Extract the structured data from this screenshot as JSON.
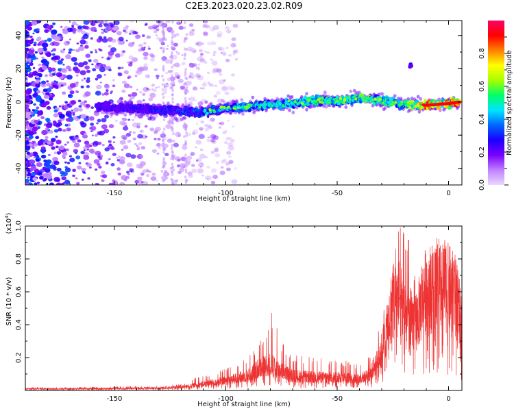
{
  "title": "C2E3.2023.020.23.02.R09",
  "colors": {
    "snr_line": "#ee3333",
    "background": "#ffffff",
    "colormap": [
      "#e8d8ff",
      "#c080ff",
      "#7a00ff",
      "#1a00ff",
      "#0066ff",
      "#00e5ff",
      "#00ff66",
      "#a8ff00",
      "#ffff00",
      "#ff8000",
      "#ff0000",
      "#ff0066"
    ]
  },
  "chart_data": [
    {
      "type": "heatmap",
      "title": "",
      "xlabel": "Height of straight line (km)",
      "ylabel": "Frequency (Hz)",
      "xlim": [
        -190,
        6
      ],
      "ylim": [
        -50,
        49
      ],
      "x_ticks": [
        -150,
        -100,
        -50,
        0
      ],
      "y_ticks": [
        -40,
        -20,
        0,
        20,
        40
      ],
      "colorbar": {
        "label": "Normalized spectral amplitude",
        "range": [
          0.0,
          1.0
        ],
        "ticks": [
          0.0,
          0.2,
          0.4,
          0.6,
          0.8
        ]
      },
      "ridge": [
        {
          "x": -180,
          "freq": 0.0,
          "amp": 0.4
        },
        {
          "x": -150,
          "freq": -3.5,
          "amp": 0.25
        },
        {
          "x": -130,
          "freq": -5.0,
          "amp": 0.3
        },
        {
          "x": -110,
          "freq": -6.0,
          "amp": 0.35
        },
        {
          "x": -100,
          "freq": -4.0,
          "amp": 0.4
        },
        {
          "x": -90,
          "freq": -2.5,
          "amp": 0.45
        },
        {
          "x": -80,
          "freq": -1.5,
          "amp": 0.5
        },
        {
          "x": -70,
          "freq": -1.0,
          "amp": 0.5
        },
        {
          "x": -60,
          "freq": 1.0,
          "amp": 0.55
        },
        {
          "x": -50,
          "freq": 0.5,
          "amp": 0.55
        },
        {
          "x": -40,
          "freq": 2.5,
          "amp": 0.6
        },
        {
          "x": -30,
          "freq": 1.0,
          "amp": 0.55
        },
        {
          "x": -20,
          "freq": -1.5,
          "amp": 0.55
        },
        {
          "x": -10,
          "freq": -2.0,
          "amp": 0.9
        },
        {
          "x": 0,
          "freq": -1.0,
          "amp": 0.8
        },
        {
          "x": 5,
          "freq": 0.0,
          "amp": 0.95
        }
      ],
      "secondary_feature": {
        "x": -17,
        "freq": 22,
        "amp": 0.2
      }
    },
    {
      "type": "line",
      "title": "",
      "xlabel": "Height of straight line (km)",
      "ylabel": "SNR (10 * v/v)",
      "y_scale_label": "(x10",
      "y_scale_exponent": "4",
      "y_scale_suffix": ")",
      "xlim": [
        -190,
        6
      ],
      "ylim": [
        0,
        1.0
      ],
      "x_ticks": [
        -150,
        -100,
        -50,
        0
      ],
      "y_ticks": [
        0.2,
        0.4,
        0.6,
        0.8,
        1.0
      ],
      "series": [
        {
          "envelope": [
            {
              "x": -190,
              "mean": 0.01,
              "peak": 0.02
            },
            {
              "x": -170,
              "mean": 0.01,
              "peak": 0.02
            },
            {
              "x": -150,
              "mean": 0.012,
              "peak": 0.025
            },
            {
              "x": -130,
              "mean": 0.015,
              "peak": 0.03
            },
            {
              "x": -120,
              "mean": 0.02,
              "peak": 0.04
            },
            {
              "x": -110,
              "mean": 0.04,
              "peak": 0.1
            },
            {
              "x": -100,
              "mean": 0.06,
              "peak": 0.14
            },
            {
              "x": -90,
              "mean": 0.09,
              "peak": 0.22
            },
            {
              "x": -85,
              "mean": 0.14,
              "peak": 0.3
            },
            {
              "x": -80,
              "mean": 0.16,
              "peak": 0.5
            },
            {
              "x": -75,
              "mean": 0.12,
              "peak": 0.32
            },
            {
              "x": -70,
              "mean": 0.09,
              "peak": 0.22
            },
            {
              "x": -60,
              "mean": 0.08,
              "peak": 0.2
            },
            {
              "x": -50,
              "mean": 0.08,
              "peak": 0.2
            },
            {
              "x": -40,
              "mean": 0.07,
              "peak": 0.16
            },
            {
              "x": -35,
              "mean": 0.1,
              "peak": 0.22
            },
            {
              "x": -30,
              "mean": 0.25,
              "peak": 0.45
            },
            {
              "x": -28,
              "mean": 0.35,
              "peak": 0.55
            },
            {
              "x": -25,
              "mean": 0.55,
              "peak": 0.85
            },
            {
              "x": -22,
              "mean": 0.55,
              "peak": 1.0
            },
            {
              "x": -18,
              "mean": 0.45,
              "peak": 0.95
            },
            {
              "x": -15,
              "mean": 0.4,
              "peak": 0.8
            },
            {
              "x": -10,
              "mean": 0.62,
              "peak": 0.78
            },
            {
              "x": -5,
              "mean": 0.62,
              "peak": 0.95
            },
            {
              "x": 0,
              "mean": 0.62,
              "peak": 0.9
            },
            {
              "x": 3,
              "mean": 0.58,
              "peak": 0.85
            },
            {
              "x": 6,
              "mean": 0.4,
              "peak": 0.55
            }
          ]
        }
      ]
    }
  ]
}
